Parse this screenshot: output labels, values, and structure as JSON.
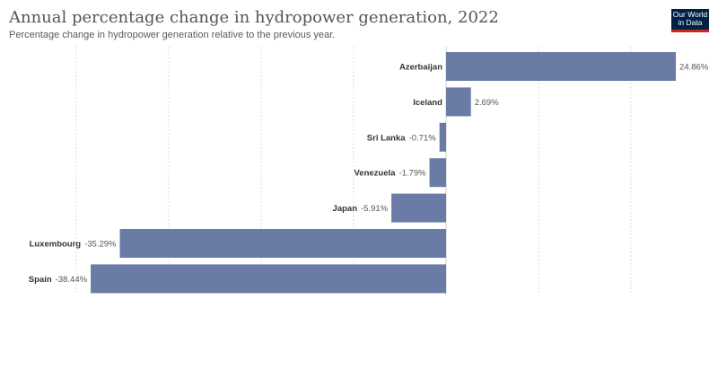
{
  "header": {
    "title": "Annual percentage change in hydropower generation, 2022",
    "subtitle": "Percentage change in hydropower generation relative to the previous year.",
    "logo_line1": "Our World",
    "logo_line2": "in Data"
  },
  "colors": {
    "bar": "#6a7ba6",
    "grid": "#dcdcdc",
    "zero_line": "#cccccc",
    "logo_bg": "#002147",
    "logo_accent": "#ce261e"
  },
  "chart_data": {
    "type": "bar",
    "orientation": "horizontal",
    "title": "Annual percentage change in hydropower generation, 2022",
    "subtitle": "Percentage change in hydropower generation relative to the previous year.",
    "unit": "%",
    "xlim": [
      -40,
      30
    ],
    "grid": true,
    "categories": [
      "Azerbaijan",
      "Iceland",
      "Sri Lanka",
      "Venezuela",
      "Japan",
      "Luxembourg",
      "Spain"
    ],
    "values": [
      24.86,
      2.69,
      -0.71,
      -1.79,
      -5.91,
      -35.29,
      -38.44
    ],
    "value_labels": [
      "24.86%",
      "2.69%",
      "-0.71%",
      "-1.79%",
      "-5.91%",
      "-35.29%",
      "-38.44%"
    ]
  }
}
